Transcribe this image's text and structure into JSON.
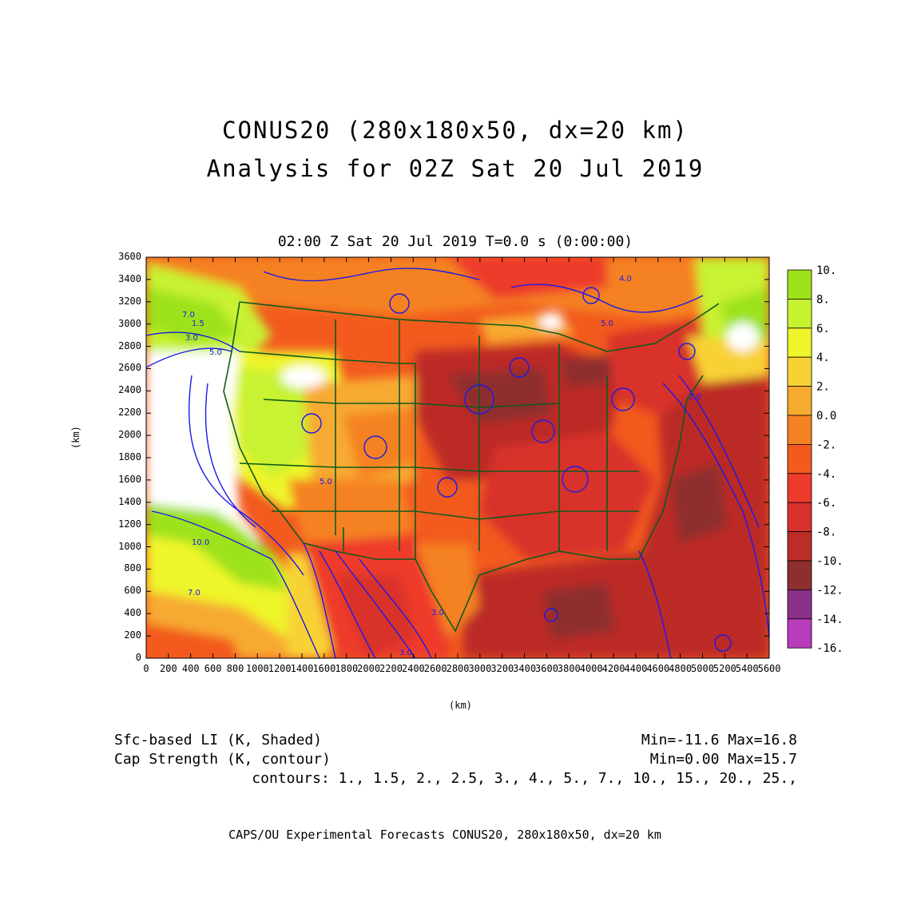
{
  "title": {
    "line1": "CONUS20 (280x180x50, dx=20 km)",
    "line2": "Analysis for 02Z Sat 20 Jul 2019"
  },
  "subtitle": "02:00 Z Sat 20 Jul 2019    T=0.0 s (0:00:00)",
  "axes": {
    "xlabel": "(km)",
    "ylabel": "(km)",
    "xticks": [
      "0",
      "200",
      "400",
      "600",
      "800",
      "1000",
      "1200",
      "1400",
      "1600",
      "1800",
      "2000",
      "2200",
      "2400",
      "2600",
      "2800",
      "3000",
      "3200",
      "3400",
      "3600",
      "3800",
      "4000",
      "4200",
      "4400",
      "4600",
      "4800",
      "5000",
      "5200",
      "5400",
      "5600"
    ],
    "yticks": [
      "0",
      "200",
      "400",
      "600",
      "800",
      "1000",
      "1200",
      "1400",
      "1600",
      "1800",
      "2000",
      "2200",
      "2400",
      "2600",
      "2800",
      "3000",
      "3200",
      "3400",
      "3600"
    ],
    "xlim": [
      0,
      5600
    ],
    "ylim": [
      0,
      3600
    ]
  },
  "colorbar": {
    "labels": [
      "10.",
      "8.",
      "6.",
      "4.",
      "2.",
      "0.0",
      "-2.",
      "-4.",
      "-6.",
      "-8.",
      "-10.",
      "-12.",
      "-14.",
      "-16."
    ],
    "colors": [
      "#9ee21a",
      "#c8f230",
      "#eef52a",
      "#f8d234",
      "#f7aa30",
      "#f58222",
      "#f25a1e",
      "#ee3a2c",
      "#d8302c",
      "#bc2c28",
      "#8e2e2e",
      "#8a3088",
      "#b83cbc",
      "#dc48e0"
    ]
  },
  "footer": {
    "shaded_label": "Sfc-based LI (K, Shaded)",
    "shaded_stats": "Min=-11.6  Max=16.8",
    "contour_label": "Cap Strength (K, contour)",
    "contour_stats": "Min=0.00  Max=15.7",
    "contours": "contours: 1., 1.5, 2., 2.5, 3., 4., 5., 7., 10., 15., 20., 25.,"
  },
  "credit": "CAPS/OU Experimental Forecasts  CONUS20, 280x180x50, dx=20 km",
  "contour_labels": [
    "7.0",
    "1.5",
    "3.0",
    "5.0",
    "10.0",
    "7.0",
    "5.0",
    "3.0",
    "4.0",
    "5.0",
    "2.0",
    "3.0"
  ]
}
